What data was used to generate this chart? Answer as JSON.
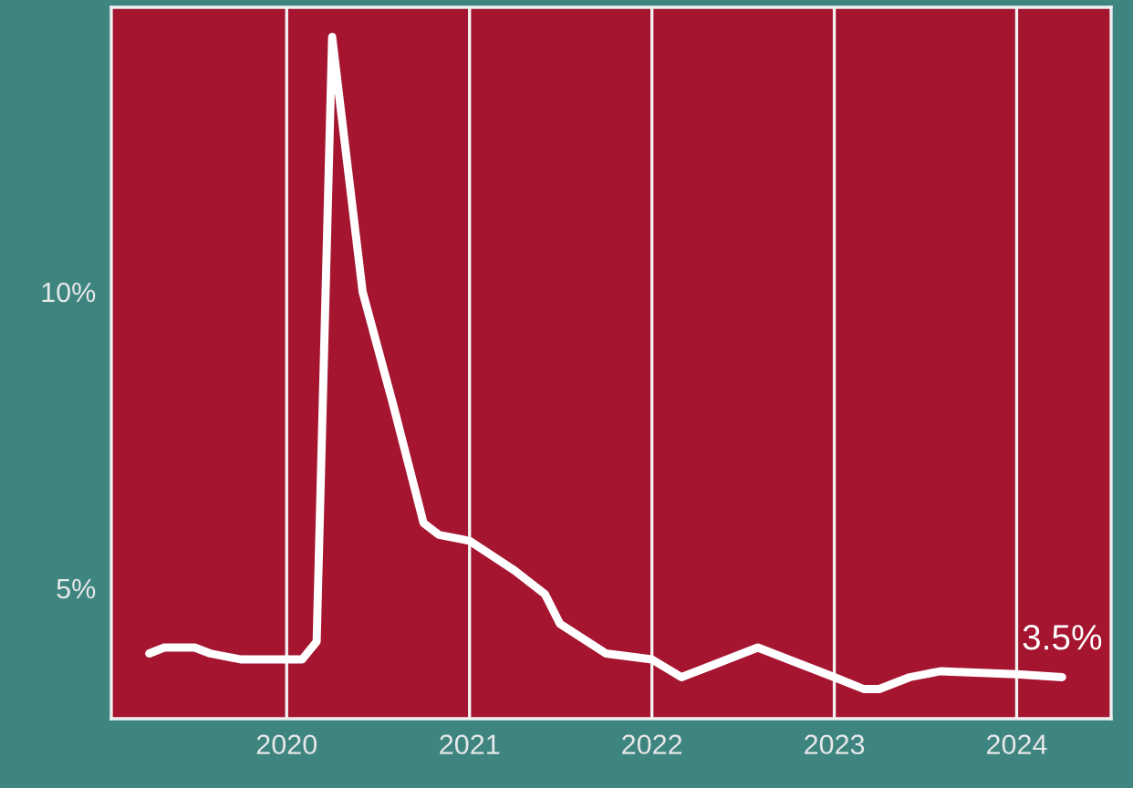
{
  "chart_data": {
    "type": "line",
    "x": [
      "2019-04",
      "2019-05",
      "2019-07",
      "2019-08",
      "2019-10",
      "2020-01",
      "2020-02",
      "2020-03",
      "2020-04",
      "2020-06",
      "2020-08",
      "2020-10",
      "2020-11",
      "2021-01",
      "2021-04",
      "2021-06",
      "2021-07",
      "2021-10",
      "2022-01",
      "2022-03",
      "2022-04",
      "2022-06",
      "2022-08",
      "2022-10",
      "2023-01",
      "2023-03",
      "2023-04",
      "2023-06",
      "2023-08",
      "2024-01",
      "2024-04"
    ],
    "series": [
      {
        "color": "#ffffff",
        "values": [
          3.9,
          4.0,
          4.0,
          3.9,
          3.8,
          3.8,
          3.8,
          4.1,
          14.3,
          10.0,
          8.1,
          6.1,
          5.9,
          5.8,
          5.3,
          4.9,
          4.4,
          3.9,
          3.8,
          3.5,
          3.6,
          3.8,
          4.0,
          3.8,
          3.5,
          3.3,
          3.3,
          3.5,
          3.6,
          3.55,
          3.5
        ]
      }
    ],
    "xlim": [
      "2019-01-15",
      "2024-07-08"
    ],
    "xticks": [
      {
        "value": "2020-01-01",
        "label": "2020"
      },
      {
        "value": "2021-01-01",
        "label": "2021"
      },
      {
        "value": "2022-01-01",
        "label": "2022"
      },
      {
        "value": "2023-01-01",
        "label": "2023"
      },
      {
        "value": "2024-01-01",
        "label": "2024"
      }
    ],
    "ylim": [
      2.8,
      14.8
    ],
    "yticks": [
      {
        "value": 5,
        "label": "5%"
      },
      {
        "value": 10,
        "label": "10%"
      }
    ],
    "grid": "x",
    "annotations": [
      {
        "text": "3.5%",
        "x": "2024-04",
        "y": 3.5
      }
    ]
  }
}
